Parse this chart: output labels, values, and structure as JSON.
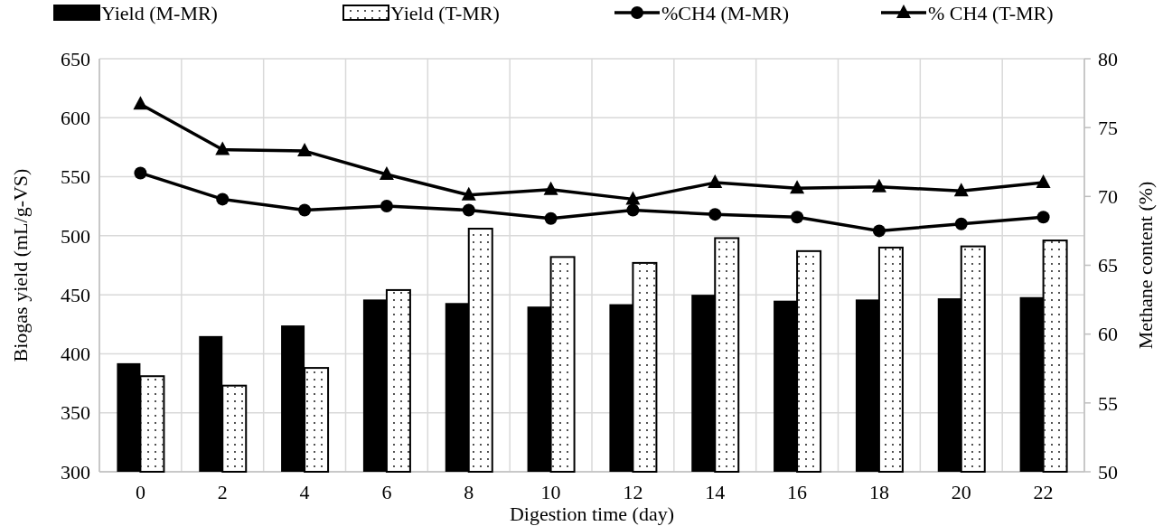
{
  "chart_data": {
    "type": "bar",
    "xlabel": "Digestion time (day)",
    "ylabel": "Biogas yield (mL/g-VS)",
    "y2label": "Methane content (%)",
    "categories": [
      "0",
      "2",
      "4",
      "6",
      "8",
      "10",
      "12",
      "14",
      "16",
      "18",
      "20",
      "22"
    ],
    "series": [
      {
        "name": "Yield (M-MR)",
        "color": "#000000",
        "values": [
          392,
          415,
          424,
          446,
          443,
          440,
          442,
          450,
          445,
          446,
          447,
          448
        ]
      },
      {
        "name": "Yield (T-MR)",
        "color": "#ffffff",
        "values": [
          381,
          373,
          388,
          454,
          506,
          482,
          477,
          498,
          487,
          490,
          491,
          496
        ]
      },
      {
        "name": "%CH4 (M-MR)",
        "type": "line",
        "axis": "y2",
        "marker": "circle",
        "color": "#000000",
        "values": [
          71.7,
          69.8,
          69.0,
          69.3,
          69.0,
          68.4,
          69.0,
          68.7,
          68.5,
          67.5,
          68.0,
          68.5
        ]
      },
      {
        "name": "% CH4 (T-MR)",
        "type": "line",
        "axis": "y2",
        "marker": "triangle",
        "color": "#000000",
        "values": [
          76.7,
          73.4,
          73.3,
          71.6,
          70.1,
          70.5,
          69.8,
          71.0,
          70.6,
          70.7,
          70.4,
          71.0
        ]
      }
    ],
    "ylim": [
      300,
      650
    ],
    "yticks": [
      300,
      350,
      400,
      450,
      500,
      550,
      600,
      650
    ],
    "y2lim": [
      50,
      80
    ],
    "y2ticks": [
      50,
      55,
      60,
      65,
      70,
      75,
      80
    ],
    "grid": true,
    "legend": "top"
  }
}
